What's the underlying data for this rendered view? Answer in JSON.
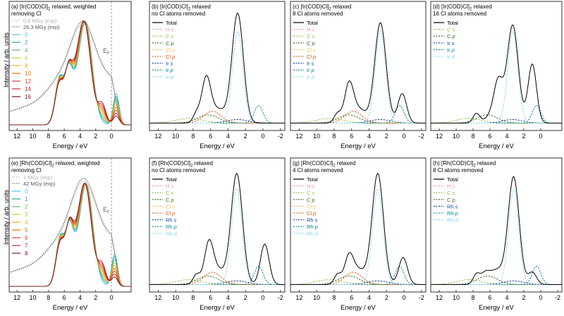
{
  "y_axis_label": "Intensity / arb. units",
  "x_axis_label": "Energy / eV",
  "chart_data": [
    {
      "id": "a",
      "type": "line",
      "title": "(a) [Ir(COD)Cl]2 relaxed, weighted removing Cl",
      "title_lines": [
        "(a) [Ir(COD)Cl]",
        "2",
        " relaxed, weighted",
        "removing Cl"
      ],
      "xlim": [
        13,
        -2.5
      ],
      "xticks": [
        12,
        10,
        8,
        6,
        4,
        2,
        0
      ],
      "xlabel": "Energy / eV",
      "ef_line": {
        "x": 0,
        "label": "E",
        "sub": "F"
      },
      "legend": {
        "exp": [
          {
            "label": "0.8 MGy (exp)",
            "color": "#b0b0b0"
          },
          {
            "label": "26.3 MGy (exp)",
            "color": "#555555"
          }
        ],
        "calc": [
          {
            "label": "0",
            "color": "#4fc3f7"
          },
          {
            "label": "2",
            "color": "#26a69a"
          },
          {
            "label": "4",
            "color": "#66bb6a"
          },
          {
            "label": "6",
            "color": "#c0ca33"
          },
          {
            "label": "8",
            "color": "#ffa726"
          },
          {
            "label": "10",
            "color": "#ef6c00"
          },
          {
            "label": "12",
            "color": "#e53935"
          },
          {
            "label": "14",
            "color": "#c62828"
          },
          {
            "label": "16",
            "color": "#7b1818"
          }
        ]
      },
      "main_peak": 3.3,
      "shoulder_peak": 6.6,
      "low_peak": -0.6,
      "peak_height": 0.92
    },
    {
      "id": "b",
      "type": "line",
      "title_lines": [
        "(b) [Ir(COD)Cl]",
        "2",
        " relaxed",
        "no Cl atoms removed"
      ],
      "xlim": [
        13,
        -2.5
      ],
      "xticks": [
        12,
        10,
        8,
        6,
        4,
        2,
        0,
        -2
      ],
      "xlabel": "Energy / eV",
      "legend": [
        {
          "label": "Total",
          "color": "#000000",
          "dash": false
        },
        {
          "label": "H s",
          "color": "#f48fb1",
          "dash": true
        },
        {
          "label": "C s",
          "color": "#8bc34a",
          "dash": true
        },
        {
          "label": "C p",
          "color": "#33691e",
          "dash": true
        },
        {
          "label": "Cl s",
          "color": "#ffb74d",
          "dash": true
        },
        {
          "label": "Cl p",
          "color": "#e65100",
          "dash": true
        },
        {
          "label": "Ir s",
          "color": "#0d47a1",
          "dash": true
        },
        {
          "label": "Ir p",
          "color": "#00838f",
          "dash": true
        },
        {
          "label": "Ir d",
          "color": "#81d4fa",
          "dash": true
        }
      ],
      "total": {
        "peaks": [
          {
            "e": 2.9,
            "h": 0.93
          },
          {
            "e": 6.5,
            "h": 0.36
          }
        ]
      },
      "d_band_peak": 2.9
    },
    {
      "id": "c",
      "type": "line",
      "title_lines": [
        "(c) [Ir(COD)Cl]",
        "2",
        " relaxed",
        "8 Cl atoms removed"
      ],
      "xlim": [
        13,
        -2.5
      ],
      "xticks": [
        12,
        10,
        8,
        6,
        4,
        2,
        0,
        -2
      ],
      "xlabel": "Energy / eV",
      "legend": [
        {
          "label": "Total",
          "color": "#000000",
          "dash": false
        },
        {
          "label": "H s",
          "color": "#f48fb1",
          "dash": true
        },
        {
          "label": "C s",
          "color": "#8bc34a",
          "dash": true
        },
        {
          "label": "C p",
          "color": "#33691e",
          "dash": true
        },
        {
          "label": "Cl s",
          "color": "#ffb74d",
          "dash": true
        },
        {
          "label": "Cl p",
          "color": "#e65100",
          "dash": true
        },
        {
          "label": "Ir s",
          "color": "#0d47a1",
          "dash": true
        },
        {
          "label": "Ir p",
          "color": "#00838f",
          "dash": true
        },
        {
          "label": "Ir d",
          "color": "#81d4fa",
          "dash": true
        }
      ],
      "total": {
        "peaks": [
          {
            "e": 2.7,
            "h": 0.85
          },
          {
            "e": 0.2,
            "h": 0.25
          },
          {
            "e": 6.3,
            "h": 0.3
          }
        ]
      },
      "d_band_peak": 2.7
    },
    {
      "id": "d",
      "type": "line",
      "title_lines": [
        "(d) [Ir(COD)Cl]",
        "2",
        " relaxed",
        "16 Cl atoms removed"
      ],
      "xlim": [
        13,
        -2.5
      ],
      "xticks": [
        12,
        10,
        8,
        6,
        4,
        2,
        0
      ],
      "xlabel": "Energy / eV",
      "legend": [
        {
          "label": "Total",
          "color": "#000000",
          "dash": false
        },
        {
          "label": "C s",
          "color": "#8bc34a",
          "dash": true
        },
        {
          "label": "C p",
          "color": "#33691e",
          "dash": true
        },
        {
          "label": "Ir s",
          "color": "#0d47a1",
          "dash": true
        },
        {
          "label": "Ir p",
          "color": "#00838f",
          "dash": true
        },
        {
          "label": "Ir d",
          "color": "#81d4fa",
          "dash": true
        }
      ],
      "total": {
        "peaks": [
          {
            "e": 3.3,
            "h": 0.82
          },
          {
            "e": 1.0,
            "h": 0.5
          },
          {
            "e": 5.0,
            "h": 0.25
          }
        ]
      },
      "d_band_peak": 3.3
    },
    {
      "id": "e",
      "type": "line",
      "title_lines": [
        "(e) [Rh(COD)Cl]",
        "2",
        " relaxed, weighted",
        "removing Cl"
      ],
      "xlim": [
        13,
        -2.5
      ],
      "xticks": [
        12,
        10,
        8,
        6,
        4,
        2,
        0
      ],
      "xlabel": "Energy / eV",
      "ef_line": {
        "x": 0,
        "label": "E",
        "sub": "F"
      },
      "legend": {
        "exp": [
          {
            "label": "1 MGy (exp)",
            "color": "#b0b0b0"
          },
          {
            "label": "42 MGy (exp)",
            "color": "#555555"
          }
        ],
        "calc": [
          {
            "label": "0",
            "color": "#4fc3f7"
          },
          {
            "label": "1",
            "color": "#26a69a"
          },
          {
            "label": "2",
            "color": "#66bb6a"
          },
          {
            "label": "3",
            "color": "#c0ca33"
          },
          {
            "label": "4",
            "color": "#ffa726"
          },
          {
            "label": "5",
            "color": "#ef6c00"
          },
          {
            "label": "6",
            "color": "#e53935"
          },
          {
            "label": "7",
            "color": "#c62828"
          },
          {
            "label": "8",
            "color": "#7b1818"
          }
        ]
      },
      "main_peak": 3.2,
      "shoulder_peak": 6.5,
      "low_peak": -0.4,
      "peak_height": 0.88
    },
    {
      "id": "f",
      "type": "line",
      "title_lines": [
        "(f) [Rh(COD)Cl]",
        "2",
        " relaxed",
        "no Cl atoms removed"
      ],
      "xlim": [
        13,
        -2.5
      ],
      "xticks": [
        12,
        10,
        8,
        6,
        4,
        2,
        0,
        -2
      ],
      "xlabel": "Energy / eV",
      "legend": [
        {
          "label": "Total",
          "color": "#000000",
          "dash": false
        },
        {
          "label": "H s",
          "color": "#f48fb1",
          "dash": true
        },
        {
          "label": "C s",
          "color": "#8bc34a",
          "dash": true
        },
        {
          "label": "C p",
          "color": "#33691e",
          "dash": true
        },
        {
          "label": "Cl s",
          "color": "#ffb74d",
          "dash": true
        },
        {
          "label": "Cl p",
          "color": "#e65100",
          "dash": true
        },
        {
          "label": "Rh s",
          "color": "#0d47a1",
          "dash": true
        },
        {
          "label": "Rh p",
          "color": "#00838f",
          "dash": true
        },
        {
          "label": "Rh d",
          "color": "#81d4fa",
          "dash": true
        }
      ],
      "total": {
        "peaks": [
          {
            "e": 3.0,
            "h": 0.9
          },
          {
            "e": -0.2,
            "h": 0.33
          },
          {
            "e": 6.2,
            "h": 0.3
          }
        ]
      },
      "d_band_peak": 3.0
    },
    {
      "id": "g",
      "type": "line",
      "title_lines": [
        "(g) [Rh(COD)Cl]",
        "2",
        " relaxed",
        "4 Cl atoms removed"
      ],
      "xlim": [
        13,
        -2.5
      ],
      "xticks": [
        12,
        10,
        8,
        6,
        4,
        2,
        0,
        -2
      ],
      "xlabel": "Energy / eV",
      "legend": [
        {
          "label": "Total",
          "color": "#000000",
          "dash": false
        },
        {
          "label": "H s",
          "color": "#f48fb1",
          "dash": true
        },
        {
          "label": "C s",
          "color": "#8bc34a",
          "dash": true
        },
        {
          "label": "C p",
          "color": "#33691e",
          "dash": true
        },
        {
          "label": "Cl s",
          "color": "#ffb74d",
          "dash": true
        },
        {
          "label": "Cl p",
          "color": "#e65100",
          "dash": true
        },
        {
          "label": "Rh s",
          "color": "#0d47a1",
          "dash": true
        },
        {
          "label": "Rh p",
          "color": "#00838f",
          "dash": true
        },
        {
          "label": "Rh d",
          "color": "#81d4fa",
          "dash": true
        }
      ],
      "total": {
        "peaks": [
          {
            "e": 3.0,
            "h": 0.9
          },
          {
            "e": 0.1,
            "h": 0.22
          },
          {
            "e": 6.3,
            "h": 0.2
          }
        ]
      },
      "d_band_peak": 3.0
    },
    {
      "id": "h",
      "type": "line",
      "title_lines": [
        "(h) [Rh(COD)Cl]",
        "2",
        " relaxed",
        "8 Cl atoms removed"
      ],
      "xlim": [
        13,
        -2.5
      ],
      "xticks": [
        12,
        10,
        8,
        6,
        4,
        2,
        0,
        -2
      ],
      "xlabel": "Energy / eV",
      "legend": [
        {
          "label": "Total",
          "color": "#000000",
          "dash": false
        },
        {
          "label": "H s",
          "color": "#f48fb1",
          "dash": true
        },
        {
          "label": "C s",
          "color": "#8bc34a",
          "dash": true
        },
        {
          "label": "C p",
          "color": "#33691e",
          "dash": true
        },
        {
          "label": "Rh s",
          "color": "#0d47a1",
          "dash": true
        },
        {
          "label": "Rh p",
          "color": "#00838f",
          "dash": true
        },
        {
          "label": "Rh d",
          "color": "#81d4fa",
          "dash": true
        }
      ],
      "total": {
        "peaks": [
          {
            "e": 3.2,
            "h": 0.87
          },
          {
            "e": 1.0,
            "h": 0.1
          },
          {
            "e": 6.6,
            "h": 0.07
          }
        ]
      },
      "d_band_peak": 3.2
    }
  ]
}
